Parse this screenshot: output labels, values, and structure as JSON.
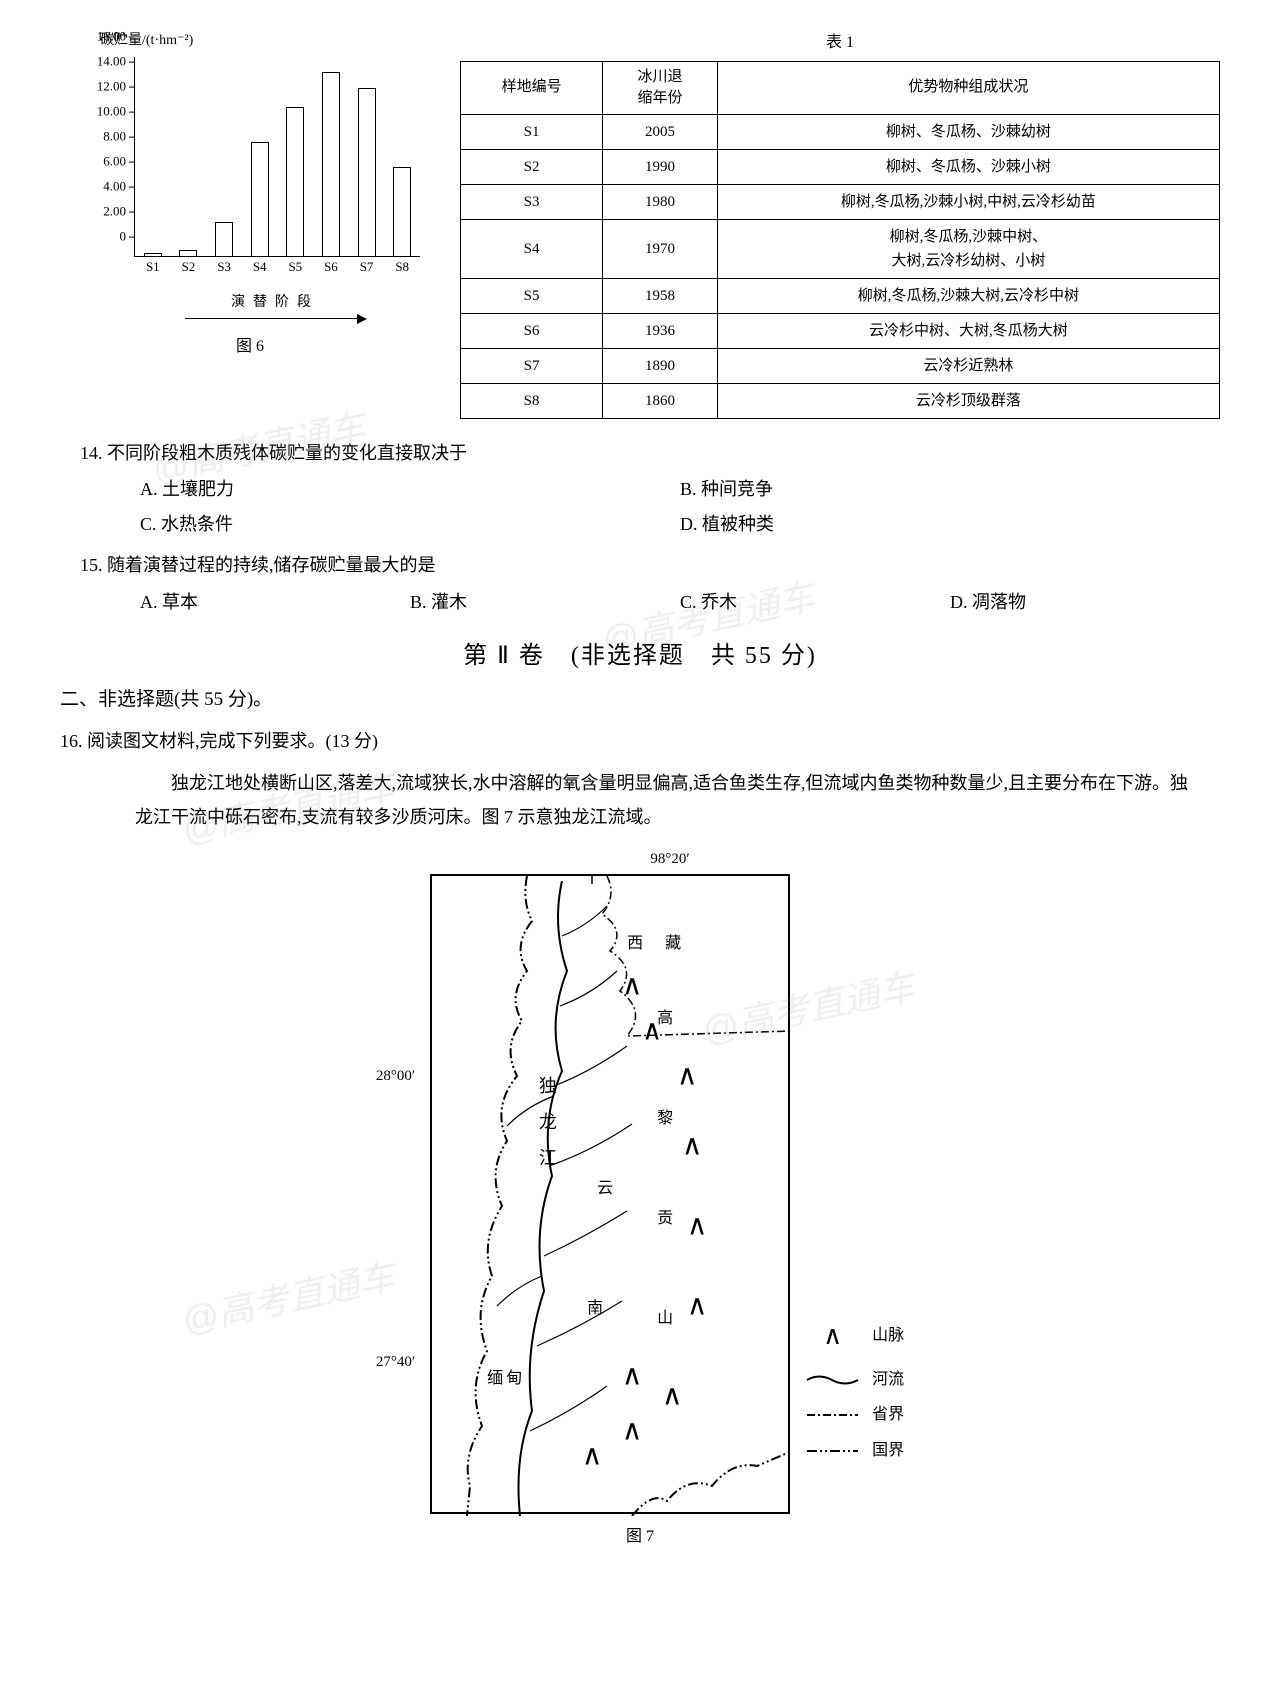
{
  "chart": {
    "type": "bar",
    "ylabel": "碳贮量/(t·hm⁻²)",
    "xlabel": "演替阶段",
    "caption": "图 6",
    "categories": [
      "S1",
      "S2",
      "S3",
      "S4",
      "S5",
      "S6",
      "S7",
      "S8"
    ],
    "values": [
      0.3,
      0.5,
      2.8,
      9.2,
      12.0,
      14.8,
      13.5,
      7.2
    ],
    "ylim": [
      0,
      16
    ],
    "ytick_step": 2,
    "yticks": [
      "0",
      "2.00",
      "4.00",
      "6.00",
      "8.00",
      "10.00",
      "12.00",
      "14.00",
      "16.00"
    ],
    "bar_color": "#ffffff",
    "border_color": "#000000",
    "axis_fontsize": 13
  },
  "table": {
    "title": "表 1",
    "columns": [
      "样地编号",
      "冰川退缩年份",
      "优势物种组成状况"
    ],
    "rows": [
      [
        "S1",
        "2005",
        "柳树、冬瓜杨、沙棘幼树"
      ],
      [
        "S2",
        "1990",
        "柳树、冬瓜杨、沙棘小树"
      ],
      [
        "S3",
        "1980",
        "柳树,冬瓜杨,沙棘小树,中树,云冷杉幼苗"
      ],
      [
        "S4",
        "1970",
        "柳树,冬瓜杨,沙棘中树、大树,云冷杉幼树、小树"
      ],
      [
        "S5",
        "1958",
        "柳树,冬瓜杨,沙棘大树,云冷杉中树"
      ],
      [
        "S6",
        "1936",
        "云冷杉中树、大树,冬瓜杨大树"
      ],
      [
        "S7",
        "1890",
        "云冷杉近熟林"
      ],
      [
        "S8",
        "1860",
        "云冷杉顶级群落"
      ]
    ]
  },
  "q14": {
    "text": "14. 不同阶段粗木质残体碳贮量的变化直接取决于",
    "a": "A. 土壤肥力",
    "b": "B. 种间竞争",
    "c": "C. 水热条件",
    "d": "D. 植被种类"
  },
  "q15": {
    "text": "15. 随着演替过程的持续,储存碳贮量最大的是",
    "a": "A. 草本",
    "b": "B. 灌木",
    "c": "C. 乔木",
    "d": "D. 凋落物"
  },
  "section2": {
    "title": "第 Ⅱ 卷　(非选择题　共 55 分)",
    "subtitle": "二、非选择题(共 55 分)。"
  },
  "q16": {
    "text": "16. 阅读图文材料,完成下列要求。(13 分)",
    "passage": "独龙江地处横断山区,落差大,流域狭长,水中溶解的氧含量明显偏高,适合鱼类生存,但流域内鱼类物种数量少,且主要分布在下游。独龙江干流中砾石密布,支流有较多沙质河床。图 7 示意独龙江流域。"
  },
  "map": {
    "caption": "图 7",
    "coord_top": "98°20′",
    "coord_left_1": "28°00′",
    "coord_left_2": "27°40′",
    "labels": {
      "xizang": "西　藏",
      "gaoligong": "高黎贡山",
      "dulong": "独龙江",
      "yunnan": "云　南",
      "miandian": "缅甸"
    },
    "legend": {
      "mountain": "山脉",
      "river": "河流",
      "province": "省界",
      "national": "国界"
    }
  },
  "watermarks": {
    "w1": "@高考直通车",
    "w2": "@高考直通车",
    "w3": "@高考直通车",
    "w4": "@高考直通车",
    "w5": "@高考直通车"
  }
}
